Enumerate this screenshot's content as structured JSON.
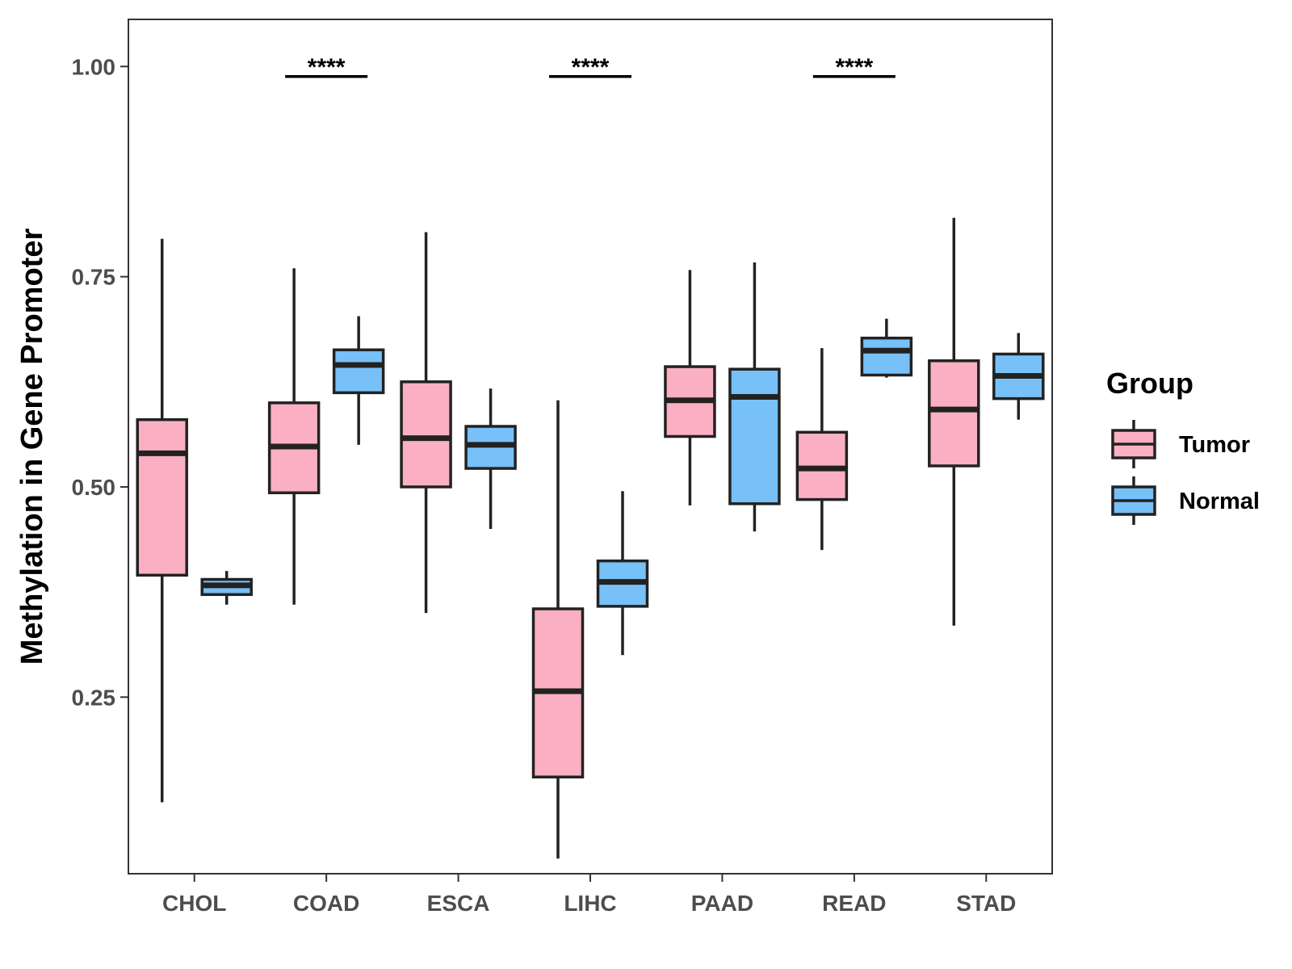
{
  "chart_data": {
    "type": "boxplot",
    "ylabel": "Methylation in Gene Promoter",
    "xlabel": "",
    "ylim": [
      0.04,
      1.056
    ],
    "yticks": [
      0.25,
      0.5,
      0.75,
      1.0
    ],
    "ytick_labels": [
      "0.25",
      "0.50",
      "0.75",
      "1.00"
    ],
    "categories": [
      "CHOL",
      "COAD",
      "ESCA",
      "LIHC",
      "PAAD",
      "READ",
      "STAD"
    ],
    "legend": {
      "title": "Group",
      "placement": "right",
      "items": [
        {
          "label": "Tumor",
          "color": "#FAB0C2"
        },
        {
          "label": "Normal",
          "color": "#77C0F8"
        }
      ]
    },
    "series": [
      {
        "name": "Tumor",
        "color": "#FAB0C2",
        "boxes": [
          {
            "category": "CHOL",
            "min": 0.125,
            "q1": 0.395,
            "median": 0.54,
            "q3": 0.58,
            "max": 0.795
          },
          {
            "category": "COAD",
            "min": 0.36,
            "q1": 0.493,
            "median": 0.548,
            "q3": 0.6,
            "max": 0.76
          },
          {
            "category": "ESCA",
            "min": 0.35,
            "q1": 0.5,
            "median": 0.558,
            "q3": 0.625,
            "max": 0.803
          },
          {
            "category": "LIHC",
            "min": 0.058,
            "q1": 0.155,
            "median": 0.257,
            "q3": 0.355,
            "max": 0.603
          },
          {
            "category": "PAAD",
            "min": 0.478,
            "q1": 0.56,
            "median": 0.603,
            "q3": 0.643,
            "max": 0.758
          },
          {
            "category": "READ",
            "min": 0.425,
            "q1": 0.485,
            "median": 0.522,
            "q3": 0.565,
            "max": 0.665
          },
          {
            "category": "STAD",
            "min": 0.335,
            "q1": 0.525,
            "median": 0.592,
            "q3": 0.65,
            "max": 0.82
          }
        ]
      },
      {
        "name": "Normal",
        "color": "#77C0F8",
        "boxes": [
          {
            "category": "CHOL",
            "min": 0.36,
            "q1": 0.372,
            "median": 0.383,
            "q3": 0.39,
            "max": 0.4
          },
          {
            "category": "COAD",
            "min": 0.55,
            "q1": 0.612,
            "median": 0.645,
            "q3": 0.663,
            "max": 0.703
          },
          {
            "category": "ESCA",
            "min": 0.45,
            "q1": 0.522,
            "median": 0.55,
            "q3": 0.572,
            "max": 0.617
          },
          {
            "category": "LIHC",
            "min": 0.3,
            "q1": 0.358,
            "median": 0.387,
            "q3": 0.412,
            "max": 0.495
          },
          {
            "category": "PAAD",
            "min": 0.447,
            "q1": 0.48,
            "median": 0.607,
            "q3": 0.64,
            "max": 0.767
          },
          {
            "category": "READ",
            "min": 0.63,
            "q1": 0.633,
            "median": 0.662,
            "q3": 0.677,
            "max": 0.7
          },
          {
            "category": "STAD",
            "min": 0.58,
            "q1": 0.605,
            "median": 0.632,
            "q3": 0.658,
            "max": 0.683
          }
        ]
      }
    ],
    "annotations": [
      {
        "category": "COAD",
        "text": "****",
        "y": 0.988
      },
      {
        "category": "LIHC",
        "text": "****",
        "y": 0.988
      },
      {
        "category": "READ",
        "text": "****",
        "y": 0.988
      }
    ]
  }
}
